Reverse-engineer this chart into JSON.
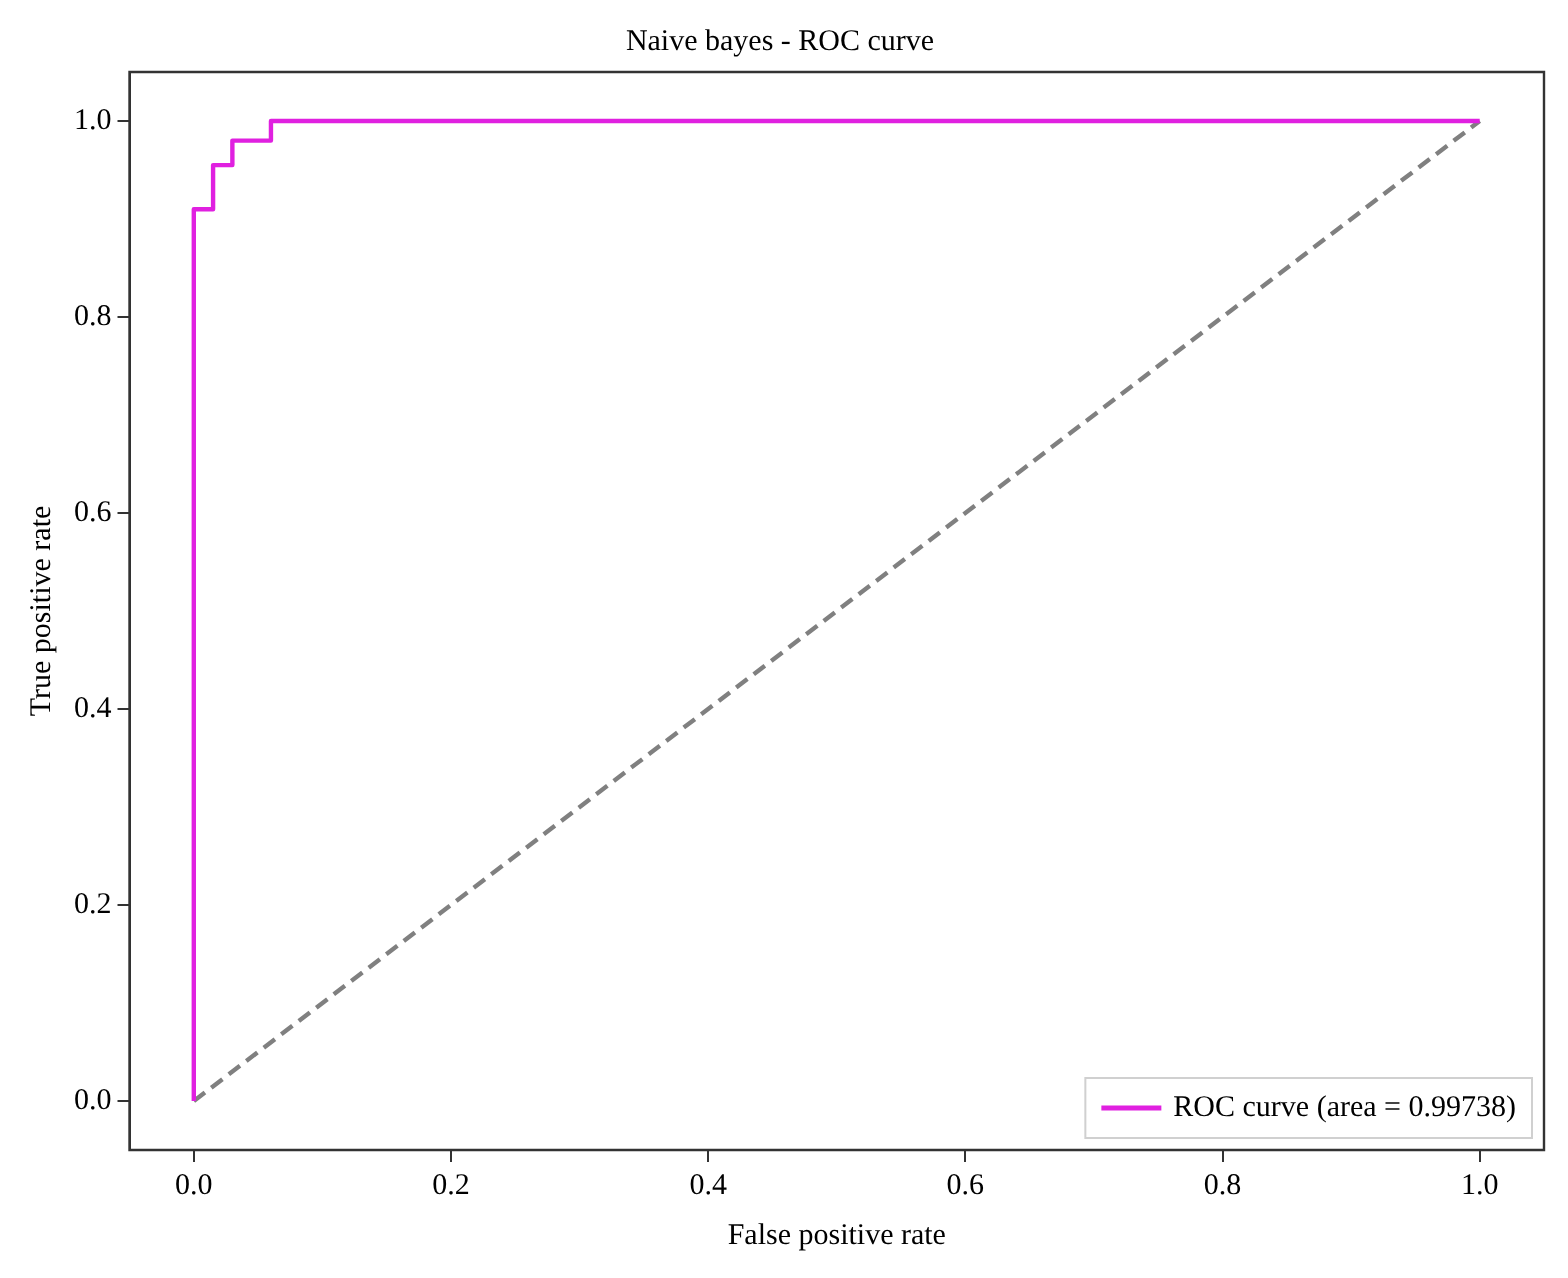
{
  "chart_data": {
    "type": "line",
    "title": "Naive bayes - ROC curve",
    "xlabel": "False positive rate",
    "ylabel": "True positive rate",
    "xlim": [
      -0.05,
      1.05
    ],
    "ylim": [
      -0.05,
      1.05
    ],
    "xticks": [
      {
        "value": 0,
        "label": "0.0"
      },
      {
        "value": 0.2,
        "label": "0.2"
      },
      {
        "value": 0.4,
        "label": "0.4"
      },
      {
        "value": 0.6,
        "label": "0.6"
      },
      {
        "value": 0.8,
        "label": "0.8"
      },
      {
        "value": 1,
        "label": "1.0"
      }
    ],
    "yticks": [
      {
        "value": 0,
        "label": "0.0"
      },
      {
        "value": 0.2,
        "label": "0.2"
      },
      {
        "value": 0.4,
        "label": "0.4"
      },
      {
        "value": 0.6,
        "label": "0.6"
      },
      {
        "value": 0.8,
        "label": "0.8"
      },
      {
        "value": 1,
        "label": "1.0"
      }
    ],
    "series": [
      {
        "name": "ROC curve (area = 0.99738)",
        "color": "#e020e0",
        "line_style": "solid",
        "x": [
          0,
          0,
          0.015,
          0.015,
          0.03,
          0.03,
          0.06,
          0.06,
          1
        ],
        "values": [
          0,
          0.91,
          0.91,
          0.955,
          0.955,
          0.98,
          0.98,
          1,
          1
        ]
      },
      {
        "color": "#808080",
        "line_style": "dashed",
        "x": [
          0,
          1
        ],
        "values": [
          0,
          1
        ]
      }
    ],
    "grid": false,
    "legend": "bottom right",
    "marker": "none"
  }
}
